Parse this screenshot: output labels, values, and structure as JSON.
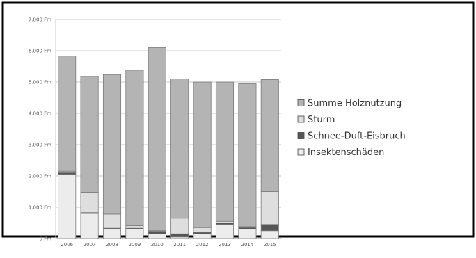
{
  "chart_data": {
    "type": "bar",
    "stacked": true,
    "categories": [
      "2006",
      "2007",
      "2008",
      "2009",
      "2010",
      "2011",
      "2012",
      "2013",
      "2014",
      "2015"
    ],
    "ylim": [
      0,
      7000
    ],
    "yticks": [
      {
        "value": 0,
        "label": "0 Fm"
      },
      {
        "value": 1000,
        "label": "1.000 Fm"
      },
      {
        "value": 2000,
        "label": "2.000 Fm"
      },
      {
        "value": 3000,
        "label": "3.000 Fm"
      },
      {
        "value": 4000,
        "label": "4.000 Fm"
      },
      {
        "value": 5000,
        "label": "5.000 Fm"
      },
      {
        "value": 6000,
        "label": "6.000 Fm"
      },
      {
        "value": 7000,
        "label": "7.000 Fm"
      }
    ],
    "grid": true,
    "legend_position": "right",
    "series": [
      {
        "name": "Insektenschäden",
        "color": "#ececec",
        "values": [
          2050,
          800,
          300,
          300,
          150,
          50,
          150,
          450,
          300,
          250
        ]
      },
      {
        "name": "Schnee-Duft-Eisbruch",
        "color": "#555555",
        "values": [
          50,
          30,
          30,
          30,
          80,
          100,
          50,
          50,
          50,
          200
        ]
      },
      {
        "name": "Sturm",
        "color": "#dedede",
        "values": [
          50,
          650,
          450,
          80,
          20,
          500,
          150,
          50,
          30,
          1050
        ]
      },
      {
        "name": "Summe Holznutzung",
        "color": "#b4b4b4",
        "values": [
          3680,
          3700,
          4460,
          4970,
          5850,
          4450,
          4650,
          4450,
          4570,
          3580
        ]
      }
    ],
    "legend_order": [
      "Summe Holznutzung",
      "Sturm",
      "Schnee-Duft-Eisbruch",
      "Insektenschäden"
    ]
  }
}
